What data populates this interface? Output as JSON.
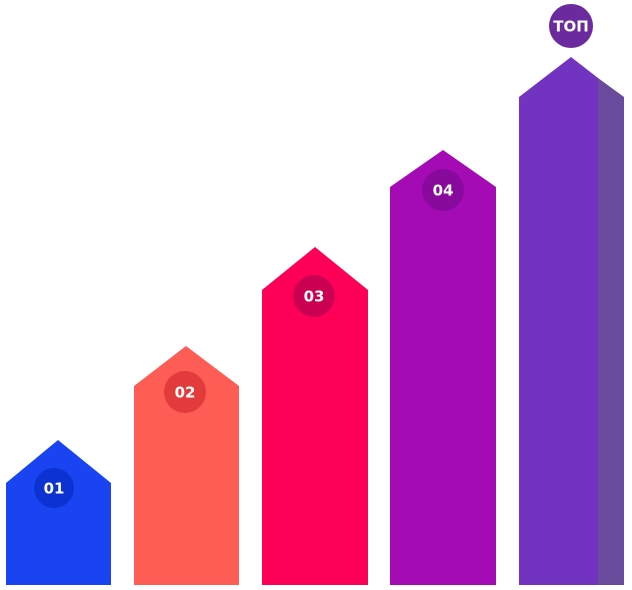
{
  "steps": [
    {
      "label": "01"
    },
    {
      "label": "02"
    },
    {
      "label": "03"
    },
    {
      "label": "04"
    }
  ],
  "top": {
    "label": "ТОП"
  }
}
